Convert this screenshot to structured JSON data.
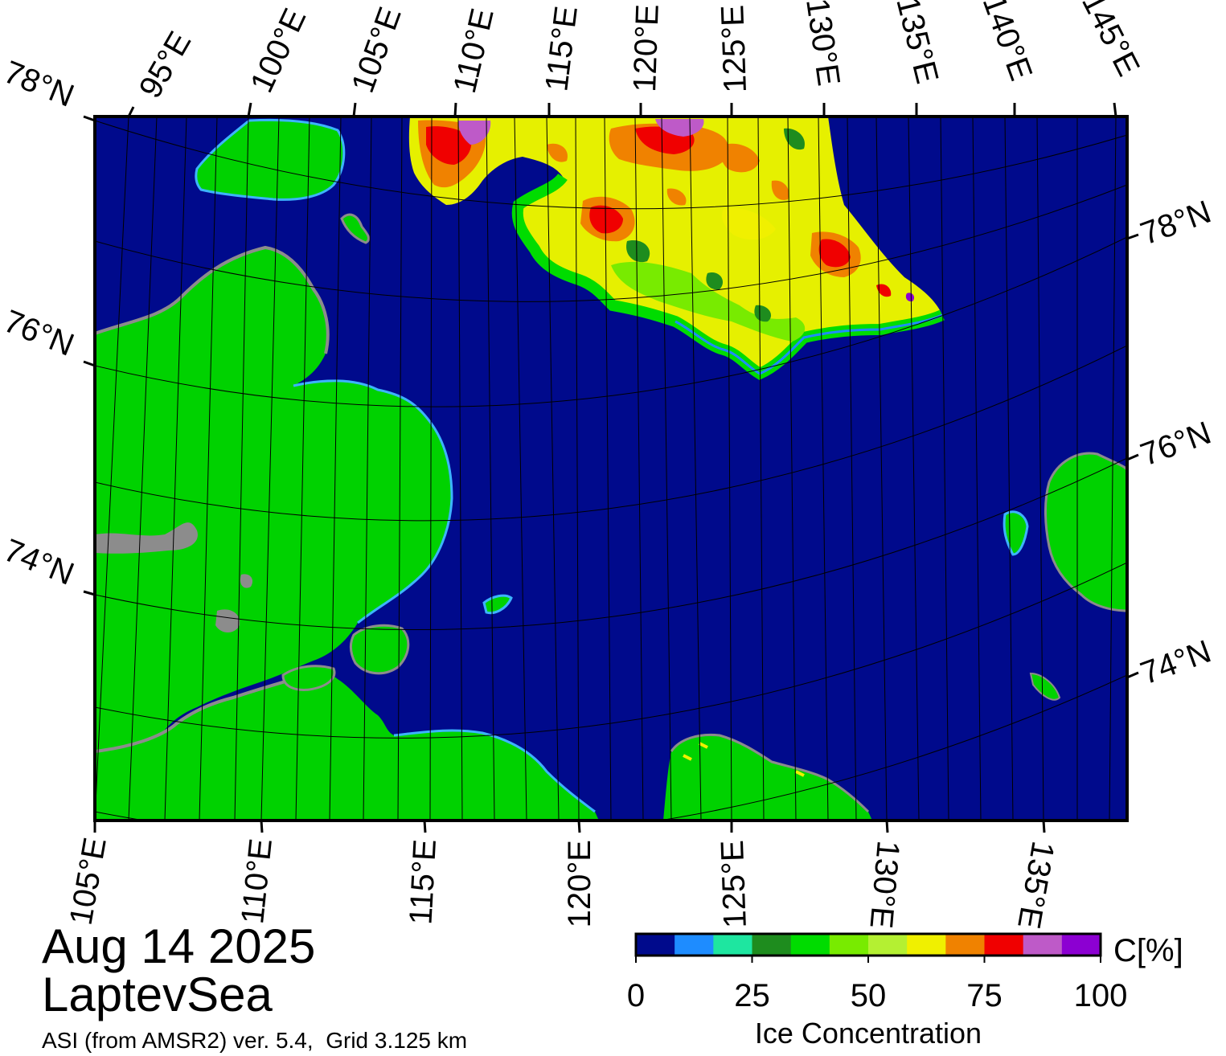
{
  "map": {
    "date": "Aug 14 2025",
    "region": "LaptevSea",
    "product": "ASI (from AMSR2) ver. 5.4,  Grid 3.125 km",
    "top_lon_labels": [
      "95°E",
      "100°E",
      "105°E",
      "110°E",
      "115°E",
      "120°E",
      "125°E",
      "130°E",
      "135°E",
      "140°E",
      "145°E"
    ],
    "left_lat_labels": [
      "78°N",
      "76°N",
      "74°N"
    ],
    "right_lat_labels": [
      "78°N",
      "76°N",
      "74°N"
    ],
    "bottom_lon_labels": [
      "105°E",
      "110°E",
      "115°E",
      "120°E",
      "125°E",
      "130°E",
      "135°E"
    ],
    "colors": {
      "water": "#000a8c",
      "land": "#00d200",
      "land_mask": "#8c8c8c"
    }
  },
  "colorbar": {
    "title": "Ice Concentration",
    "unit": "C[%]",
    "tick_labels": [
      "0",
      "25",
      "50",
      "75",
      "100"
    ],
    "colors": [
      "#000a8c",
      "#1e8cff",
      "#1ee6a0",
      "#1e8c1e",
      "#00dc00",
      "#78eb00",
      "#b4f032",
      "#f0f000",
      "#f08200",
      "#f00000",
      "#be5ac8",
      "#8c00d2"
    ]
  }
}
